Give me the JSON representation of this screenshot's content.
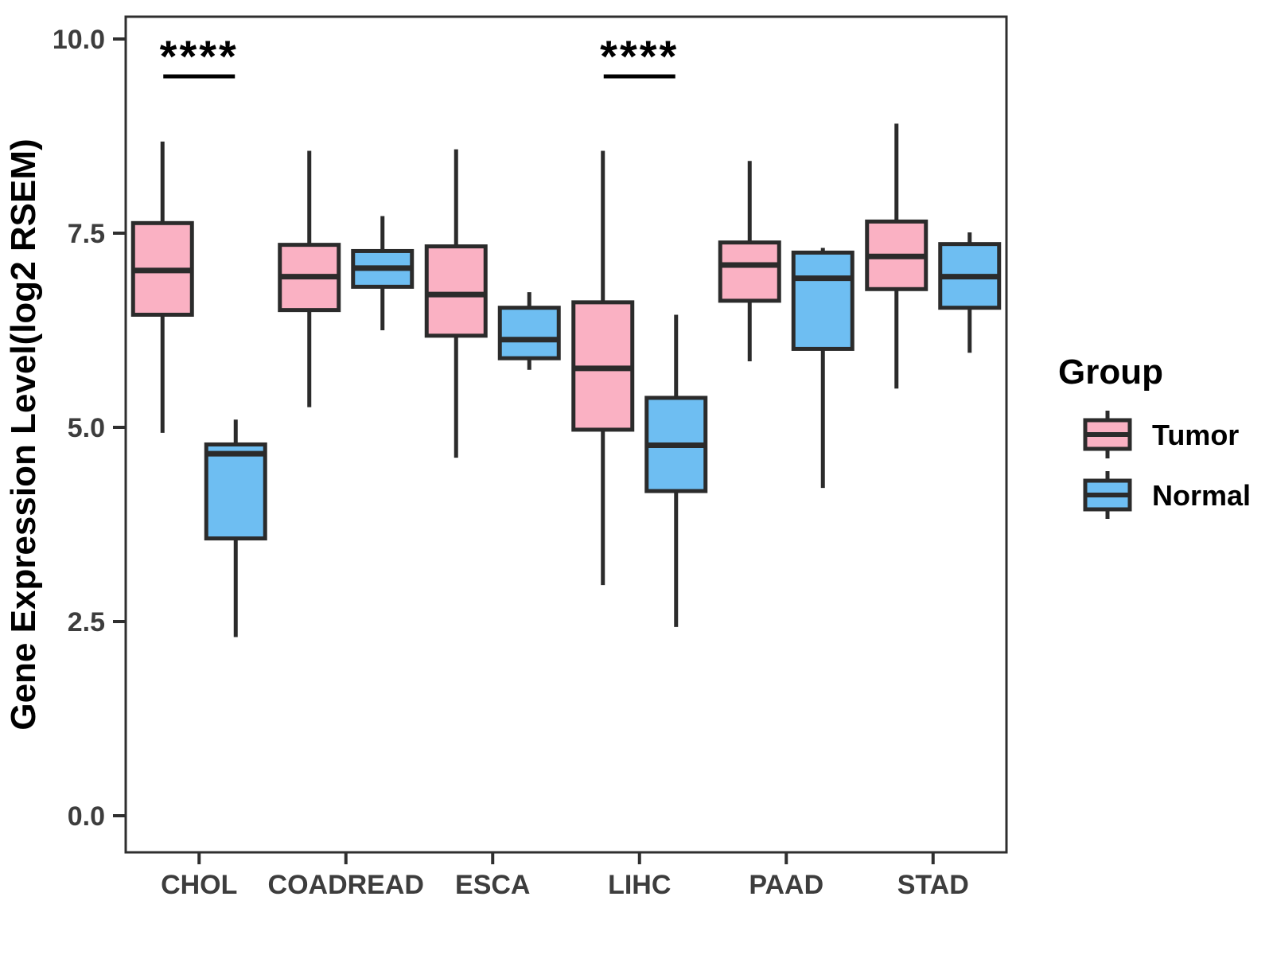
{
  "chart_data": {
    "type": "boxplot",
    "title": "",
    "xlabel": "",
    "ylabel": "Gene Expression Level(log2 RSEM)",
    "ylim": [
      0,
      10
    ],
    "yticks": [
      0.0,
      2.5,
      5.0,
      7.5,
      10.0
    ],
    "ytick_labels": [
      "0.0",
      "2.5",
      "5.0",
      "7.5",
      "10.0"
    ],
    "categories": [
      "CHOL",
      "COADREAD",
      "ESCA",
      "LIHC",
      "PAAD",
      "STAD"
    ],
    "grid": false,
    "colors": {
      "tumor_fill": "#FAB1C3",
      "normal_fill": "#6EBEF2",
      "box_outline": "#2B2B2B",
      "axis_text": "#3D3D3D",
      "panel_border": "#2F2F2F",
      "annotation": "#000000"
    },
    "legend": {
      "title": "Group",
      "position": "right",
      "entries": [
        {
          "label": "Tumor",
          "color": "#FAB1C3"
        },
        {
          "label": "Normal",
          "color": "#6EBEF2"
        }
      ]
    },
    "series": [
      {
        "name": "Tumor",
        "color": "#FAB1C3",
        "boxes": [
          {
            "category": "CHOL",
            "low": 4.93,
            "q1": 6.45,
            "median": 7.02,
            "q3": 7.63,
            "high": 8.68
          },
          {
            "category": "COADREAD",
            "low": 5.26,
            "q1": 6.51,
            "median": 6.94,
            "q3": 7.35,
            "high": 8.56
          },
          {
            "category": "ESCA",
            "low": 4.61,
            "q1": 6.18,
            "median": 6.71,
            "q3": 7.33,
            "high": 8.58
          },
          {
            "category": "LIHC",
            "low": 2.97,
            "q1": 4.97,
            "median": 5.76,
            "q3": 6.61,
            "high": 8.56
          },
          {
            "category": "PAAD",
            "low": 5.85,
            "q1": 6.63,
            "median": 7.09,
            "q3": 7.38,
            "high": 8.43
          },
          {
            "category": "STAD",
            "low": 5.5,
            "q1": 6.78,
            "median": 7.2,
            "q3": 7.65,
            "high": 8.91
          }
        ]
      },
      {
        "name": "Normal",
        "color": "#6EBEF2",
        "boxes": [
          {
            "category": "CHOL",
            "low": 2.3,
            "q1": 3.57,
            "median": 4.66,
            "q3": 4.78,
            "high": 5.1
          },
          {
            "category": "COADREAD",
            "low": 6.25,
            "q1": 6.81,
            "median": 7.05,
            "q3": 7.27,
            "high": 7.72
          },
          {
            "category": "ESCA",
            "low": 5.74,
            "q1": 5.89,
            "median": 6.13,
            "q3": 6.54,
            "high": 6.74
          },
          {
            "category": "LIHC",
            "low": 2.43,
            "q1": 4.18,
            "median": 4.77,
            "q3": 5.38,
            "high": 6.45
          },
          {
            "category": "PAAD",
            "low": 4.22,
            "q1": 6.01,
            "median": 6.92,
            "q3": 7.25,
            "high": 7.31
          },
          {
            "category": "STAD",
            "low": 5.96,
            "q1": 6.54,
            "median": 6.94,
            "q3": 7.36,
            "high": 7.51
          }
        ]
      }
    ],
    "annotations": [
      {
        "category": "CHOL",
        "text": "****"
      },
      {
        "category": "LIHC",
        "text": "****"
      }
    ]
  }
}
